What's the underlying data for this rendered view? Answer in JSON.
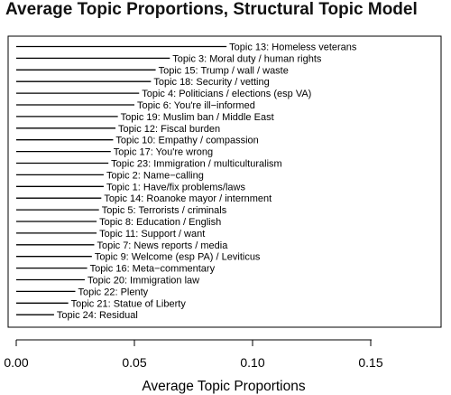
{
  "chart_data": {
    "type": "bar",
    "title": "Average Topic Proportions, Structural Topic Model",
    "xlabel": "Average Topic Proportions",
    "ylabel": "",
    "xlim": [
      -0.005,
      0.182
    ],
    "xticks": [
      0.0,
      0.05,
      0.1,
      0.15
    ],
    "xtick_labels": [
      "0.00",
      "0.05",
      "0.10",
      "0.15"
    ],
    "grid": false,
    "legend": "none",
    "categories": [
      "Topic 13: Homeless veterans",
      "Topic 3: Moral duty / human rights",
      "Topic 15: Trump / wall / waste",
      "Topic 18: Security / vetting",
      "Topic 4: Politicians / elections (esp VA)",
      "Topic 6: You're ill−informed",
      "Topic 19: Muslim ban / Middle East",
      "Topic 12: Fiscal burden",
      "Topic 10: Empathy / compassion",
      "Topic 17: You're wrong",
      "Topic 23: Immigration / multiculturalism",
      "Topic 2: Name−calling",
      "Topic 1: Have/fix problems/laws",
      "Topic 14: Roanoke mayor / internment",
      "Topic 5: Terrorists / criminals",
      "Topic 8: Education / English",
      "Topic 11: Support / want",
      "Topic 7: News reports / media",
      "Topic 9: Welcome (esp PA) / Leviticus",
      "Topic 16: Meta−commentary",
      "Topic 20: Immigration law",
      "Topic 22: Plenty",
      "Topic 21: Statue of Liberty",
      "Topic 24: Residual"
    ],
    "values": [
      0.089,
      0.065,
      0.059,
      0.057,
      0.052,
      0.05,
      0.043,
      0.042,
      0.041,
      0.04,
      0.039,
      0.037,
      0.037,
      0.036,
      0.035,
      0.034,
      0.034,
      0.033,
      0.032,
      0.03,
      0.029,
      0.025,
      0.022,
      0.016
    ]
  }
}
